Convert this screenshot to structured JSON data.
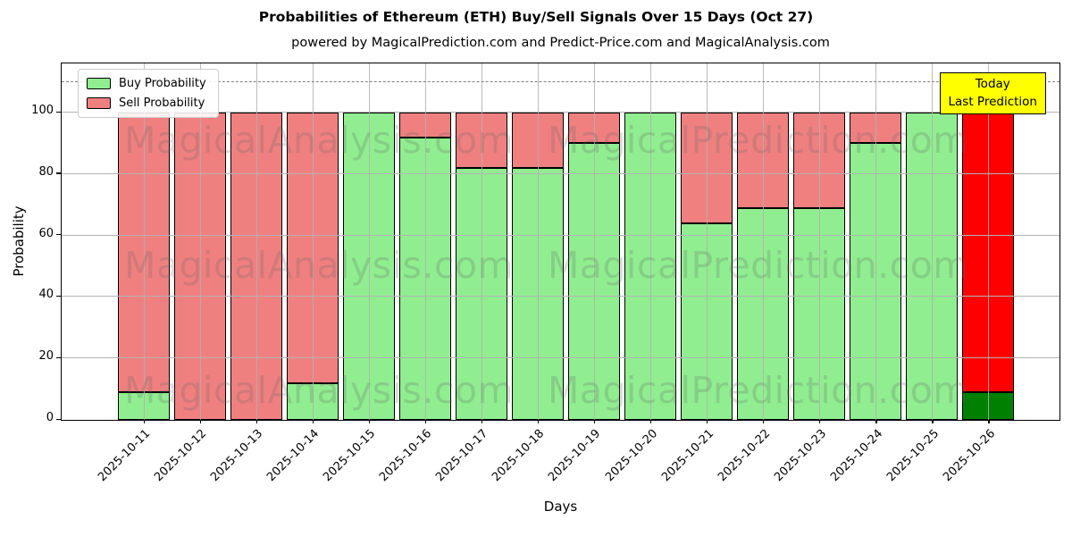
{
  "title": "Probabilities of Ethereum (ETH) Buy/Sell Signals Over 15 Days (Oct 27)",
  "subtitle": "powered by MagicalPrediction.com and Predict-Price.com and MagicalAnalysis.com",
  "legend": {
    "buy_label": "Buy Probability",
    "sell_label": "Sell Probability"
  },
  "annotation_box": {
    "line1": "Today",
    "line2": "Last Prediction",
    "bg_color": "#ffff00",
    "border_color": "#000000"
  },
  "watermarks": {
    "left_text": "MagicalAnalysis.com",
    "right_text": "MagicalPrediction.com",
    "rows": 3
  },
  "axes": {
    "xlabel": "Days",
    "ylabel": "Probability",
    "yticks": [
      0,
      20,
      40,
      60,
      80,
      100
    ],
    "ylim": [
      0,
      116
    ],
    "dashed_line_y": 110,
    "grid_color": "#b3b3b3"
  },
  "chart_data": {
    "type": "bar",
    "stacked": true,
    "title": "Probabilities of Ethereum (ETH) Buy/Sell Signals Over 15 Days (Oct 27)",
    "xlabel": "Days",
    "ylabel": "Probability",
    "ylim": [
      0,
      116
    ],
    "grid": true,
    "legend_position": "upper left",
    "categories": [
      "2025-10-11",
      "2025-10-12",
      "2025-10-13",
      "2025-10-14",
      "2025-10-15",
      "2025-10-16",
      "2025-10-17",
      "2025-10-18",
      "2025-10-19",
      "2025-10-20",
      "2025-10-21",
      "2025-10-22",
      "2025-10-23",
      "2025-10-24",
      "2025-10-25",
      "2025-10-26"
    ],
    "series": [
      {
        "name": "Buy Probability",
        "color": "#90ee90",
        "values": [
          9,
          0,
          0,
          12,
          100,
          92,
          82,
          82,
          90,
          100,
          64,
          69,
          69,
          90,
          100,
          9
        ]
      },
      {
        "name": "Sell Probability",
        "color": "#f08080",
        "values": [
          91,
          100,
          100,
          88,
          0,
          8,
          18,
          18,
          10,
          0,
          36,
          31,
          31,
          10,
          0,
          91
        ]
      }
    ],
    "today_bar": {
      "index": 15,
      "category": "2025-10-26",
      "buy_color": "#008000",
      "sell_color": "#ff0000"
    }
  }
}
